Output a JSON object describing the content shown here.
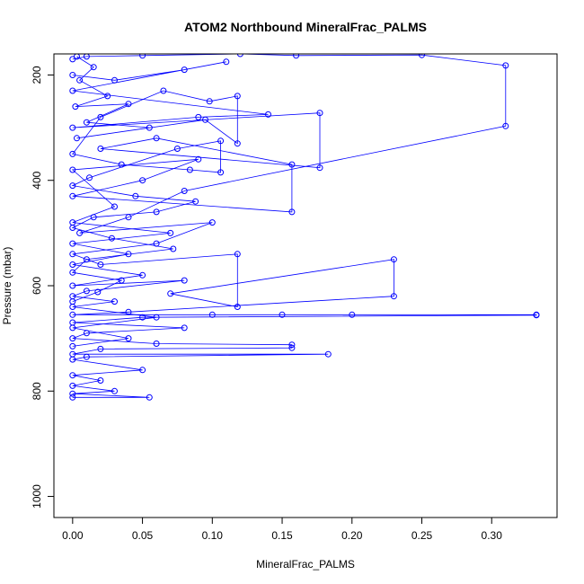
{
  "chart_data": {
    "type": "scatter",
    "title": "ATOM2 Northbound MineralFrac_PALMS",
    "xlabel": "MineralFrac_PALMS",
    "ylabel": "Pressure (mbar)",
    "xlim": [
      -0.0134,
      0.3468
    ],
    "ylim": [
      1040,
      160
    ],
    "y_reversed": true,
    "x_ticks": [
      0.0,
      0.05,
      0.1,
      0.15,
      0.2,
      0.25,
      0.3
    ],
    "x_tick_labels": [
      "0.00",
      "0.05",
      "0.10",
      "0.15",
      "0.20",
      "0.25",
      "0.30"
    ],
    "y_ticks": [
      200,
      400,
      600,
      800,
      1000
    ],
    "y_tick_labels": [
      "200",
      "400",
      "600",
      "800",
      "1000"
    ],
    "grid": false,
    "style": {
      "color": "#0000ff",
      "marker": "open-circle",
      "connect_points": true
    },
    "series": [
      {
        "points": [
          [
            0.0,
            170
          ],
          [
            0.01,
            165
          ],
          [
            0.05,
            163
          ],
          [
            0.12,
            160
          ],
          [
            0.16,
            163
          ],
          [
            0.25,
            162
          ],
          [
            0.31,
            182
          ],
          [
            0.31,
            297
          ],
          [
            0.08,
            420
          ],
          [
            0.04,
            470
          ],
          [
            0.005,
            500
          ],
          [
            0.1,
            480
          ],
          [
            0.06,
            520
          ],
          [
            0.0,
            540
          ],
          [
            0.02,
            560
          ],
          [
            0.118,
            540
          ],
          [
            0.118,
            640
          ],
          [
            0.07,
            615
          ],
          [
            0.23,
            550
          ],
          [
            0.23,
            620
          ],
          [
            0.04,
            650
          ],
          [
            0.0,
            655
          ],
          [
            0.1,
            655
          ],
          [
            0.15,
            655
          ],
          [
            0.2,
            655
          ],
          [
            0.332,
            655
          ],
          [
            0.332,
            656
          ],
          [
            0.05,
            660
          ],
          [
            0.0,
            670
          ],
          [
            0.08,
            680
          ],
          [
            0.01,
            690
          ],
          [
            0.0,
            700
          ],
          [
            0.06,
            710
          ],
          [
            0.157,
            712
          ],
          [
            0.157,
            718
          ],
          [
            0.02,
            720
          ],
          [
            0.0,
            730
          ],
          [
            0.183,
            730
          ],
          [
            0.01,
            735
          ],
          [
            0.0,
            740
          ],
          [
            0.05,
            760
          ],
          [
            0.0,
            770
          ],
          [
            0.02,
            780
          ],
          [
            0.0,
            790
          ],
          [
            0.03,
            800
          ],
          [
            0.0,
            805
          ],
          [
            0.055,
            812
          ],
          [
            0.0,
            812
          ]
        ]
      },
      {
        "points": [
          [
            0.0,
            200
          ],
          [
            0.03,
            210
          ],
          [
            0.08,
            190
          ],
          [
            0.11,
            175
          ],
          [
            0.0,
            230
          ],
          [
            0.14,
            275
          ],
          [
            0.09,
            280
          ],
          [
            0.0,
            300
          ],
          [
            0.177,
            272
          ],
          [
            0.177,
            376
          ],
          [
            0.02,
            340
          ],
          [
            0.06,
            320
          ],
          [
            0.157,
            370
          ],
          [
            0.157,
            460
          ],
          [
            0.0,
            430
          ],
          [
            0.05,
            400
          ],
          [
            0.09,
            360
          ],
          [
            0.0,
            380
          ],
          [
            0.03,
            450
          ],
          [
            0.0,
            480
          ],
          [
            0.07,
            500
          ],
          [
            0.0,
            520
          ],
          [
            0.04,
            540
          ],
          [
            0.0,
            560
          ],
          [
            0.05,
            580
          ],
          [
            0.0,
            600
          ],
          [
            0.08,
            590
          ],
          [
            0.01,
            610
          ],
          [
            0.0,
            620
          ],
          [
            0.03,
            630
          ],
          [
            0.0,
            640
          ],
          [
            0.06,
            660
          ],
          [
            0.0,
            680
          ],
          [
            0.04,
            700
          ],
          [
            0.0,
            715
          ]
        ]
      },
      {
        "points": [
          [
            0.003,
            165
          ],
          [
            0.015,
            185
          ],
          [
            0.005,
            210
          ],
          [
            0.025,
            240
          ],
          [
            0.002,
            260
          ],
          [
            0.04,
            255
          ],
          [
            0.01,
            290
          ],
          [
            0.055,
            300
          ],
          [
            0.003,
            320
          ],
          [
            0.095,
            285
          ],
          [
            0.118,
            330
          ],
          [
            0.118,
            240
          ],
          [
            0.098,
            250
          ],
          [
            0.065,
            230
          ],
          [
            0.02,
            280
          ],
          [
            0.0,
            350
          ],
          [
            0.035,
            370
          ],
          [
            0.084,
            380
          ],
          [
            0.106,
            385
          ],
          [
            0.106,
            325
          ],
          [
            0.075,
            340
          ],
          [
            0.012,
            395
          ],
          [
            0.0,
            410
          ],
          [
            0.045,
            430
          ],
          [
            0.088,
            440
          ],
          [
            0.06,
            460
          ],
          [
            0.015,
            470
          ],
          [
            0.0,
            490
          ],
          [
            0.028,
            510
          ],
          [
            0.072,
            530
          ],
          [
            0.01,
            550
          ],
          [
            0.0,
            575
          ],
          [
            0.035,
            590
          ],
          [
            0.018,
            612
          ],
          [
            0.0,
            630
          ]
        ]
      }
    ]
  }
}
